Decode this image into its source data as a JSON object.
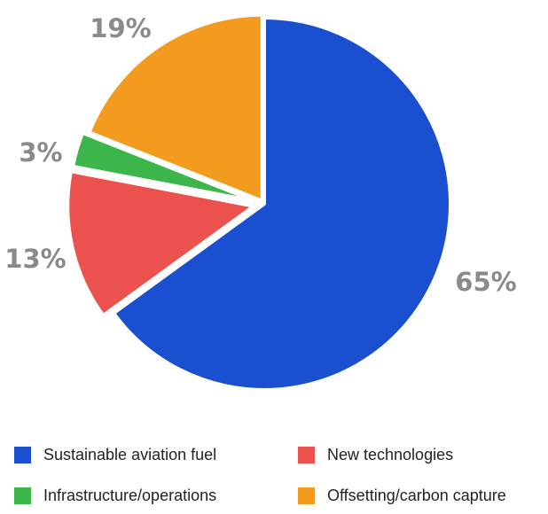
{
  "chart_data": {
    "type": "pie",
    "title": "",
    "slices": [
      {
        "label": "Sustainable aviation fuel",
        "value": 65,
        "display": "65%",
        "color": "#1a4fd0"
      },
      {
        "label": "New technologies",
        "value": 13,
        "display": "13%",
        "color": "#ec524d"
      },
      {
        "label": "Infrastructure/operations",
        "value": 3,
        "display": "3%",
        "color": "#3cb54a"
      },
      {
        "label": "Offsetting/carbon capture",
        "value": 19,
        "display": "19%",
        "color": "#f39b1e"
      }
    ],
    "legend_position": "bottom",
    "start_angle_note": "clockwise from 12 o'clock"
  }
}
